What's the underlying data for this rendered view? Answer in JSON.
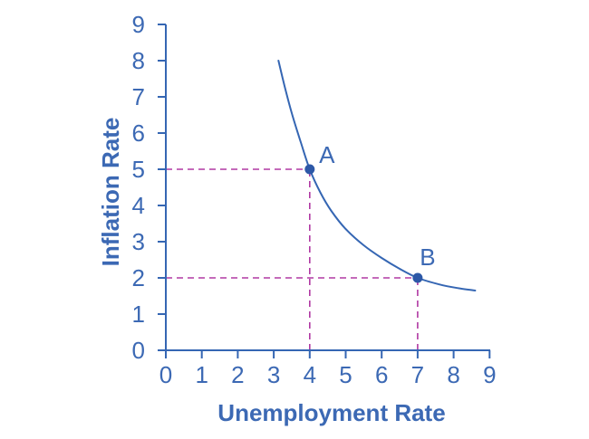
{
  "figure": {
    "background": "#ffffff",
    "colors": {
      "axis": "#3566b3",
      "text": "#3c69b4",
      "curve": "#3566b3",
      "point": "#2d58a7",
      "guide": "#b038a3"
    }
  },
  "chart_data": {
    "type": "line",
    "title": "",
    "xlabel": "Unemployment Rate",
    "ylabel": "Inflation Rate",
    "xlim": [
      0,
      9
    ],
    "ylim": [
      0,
      9
    ],
    "xticks": [
      0,
      1,
      2,
      3,
      4,
      5,
      6,
      7,
      8,
      9
    ],
    "yticks": [
      0,
      1,
      2,
      3,
      4,
      5,
      6,
      7,
      8,
      9
    ],
    "grid": false,
    "legend": false,
    "series": [
      {
        "name": "curve",
        "style": "smooth",
        "points": [
          [
            3.13,
            8.0
          ],
          [
            3.3,
            7.3
          ],
          [
            3.5,
            6.55
          ],
          [
            3.75,
            5.75
          ],
          [
            4.0,
            5.0
          ],
          [
            4.3,
            4.35
          ],
          [
            4.6,
            3.85
          ],
          [
            5.0,
            3.35
          ],
          [
            5.5,
            2.9
          ],
          [
            6.0,
            2.55
          ],
          [
            6.5,
            2.25
          ],
          [
            7.0,
            2.0
          ],
          [
            7.6,
            1.82
          ],
          [
            8.1,
            1.72
          ],
          [
            8.6,
            1.65
          ]
        ]
      }
    ],
    "marked_points": [
      {
        "label": "A",
        "x": 4,
        "y": 5
      },
      {
        "label": "B",
        "x": 7,
        "y": 2
      }
    ],
    "guides": [
      {
        "from": [
          0,
          5
        ],
        "to": [
          4,
          5
        ]
      },
      {
        "from": [
          4,
          0
        ],
        "to": [
          4,
          5
        ]
      },
      {
        "from": [
          0,
          2
        ],
        "to": [
          7,
          2
        ]
      },
      {
        "from": [
          7,
          0
        ],
        "to": [
          7,
          2
        ]
      }
    ]
  }
}
